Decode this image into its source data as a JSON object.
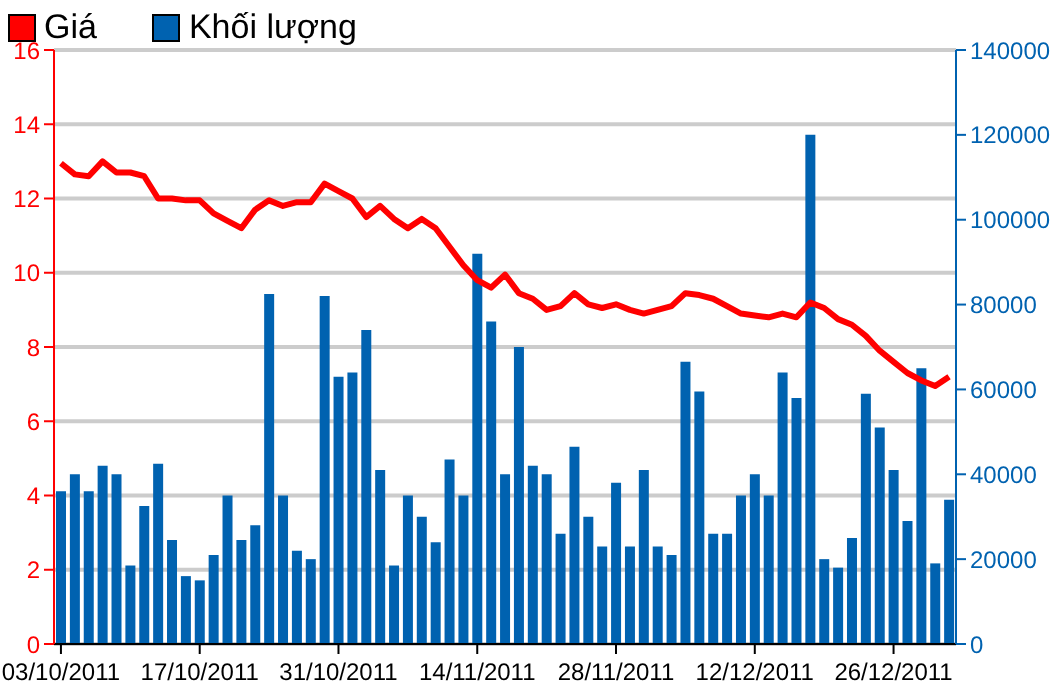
{
  "chart_data": {
    "type": "bar",
    "categories": [
      "03/10/2011",
      null,
      null,
      null,
      null,
      null,
      null,
      null,
      null,
      null,
      "17/10/2011",
      null,
      null,
      null,
      null,
      null,
      null,
      null,
      null,
      null,
      "31/10/2011",
      null,
      null,
      null,
      null,
      null,
      null,
      null,
      null,
      null,
      "14/11/2011",
      null,
      null,
      null,
      null,
      null,
      null,
      null,
      null,
      null,
      "28/11/2011",
      null,
      null,
      null,
      null,
      null,
      null,
      null,
      null,
      null,
      "12/12/2011",
      null,
      null,
      null,
      null,
      null,
      null,
      null,
      null,
      null,
      "26/12/2011",
      null,
      null,
      null,
      null
    ],
    "series": [
      {
        "name": "Giá",
        "type": "line",
        "color": "#ff0000",
        "values": [
          12.95,
          12.65,
          12.6,
          13.0,
          12.7,
          12.7,
          12.6,
          12.0,
          12.0,
          11.95,
          11.95,
          11.6,
          11.4,
          11.2,
          11.7,
          11.95,
          11.8,
          11.9,
          11.9,
          12.4,
          12.2,
          12.0,
          11.5,
          11.8,
          11.45,
          11.2,
          11.45,
          11.2,
          10.7,
          10.2,
          9.8,
          9.6,
          9.95,
          9.45,
          9.3,
          9.0,
          9.1,
          9.45,
          9.15,
          9.05,
          9.15,
          9.0,
          8.9,
          9.0,
          9.1,
          9.45,
          9.4,
          9.3,
          9.1,
          8.9,
          8.85,
          8.8,
          8.9,
          8.8,
          9.2,
          9.05,
          8.75,
          8.6,
          8.3,
          7.9,
          7.6,
          7.3,
          7.1,
          6.95,
          7.2
        ]
      },
      {
        "name": "Khối lượng",
        "axis": "y2",
        "color": "#0062b0",
        "values": [
          36000,
          40000,
          36000,
          42000,
          40000,
          18500,
          32500,
          42500,
          24500,
          16000,
          15000,
          21000,
          35000,
          24500,
          28000,
          82500,
          35000,
          22000,
          20000,
          82000,
          63000,
          64000,
          74000,
          41000,
          18500,
          35000,
          30000,
          24000,
          43500,
          35000,
          92000,
          76000,
          40000,
          70000,
          42000,
          40000,
          26000,
          46500,
          30000,
          23000,
          38000,
          23000,
          41000,
          23000,
          21000,
          66500,
          59500,
          26000,
          26000,
          35000,
          40000,
          35000,
          64000,
          58000,
          120000,
          20000,
          18000,
          25000,
          59000,
          51000,
          41000,
          29000,
          65000,
          19000,
          34000
        ]
      }
    ],
    "ylim": [
      0,
      16
    ],
    "yticks": [
      0,
      2,
      4,
      6,
      8,
      10,
      12,
      14,
      16
    ],
    "y2lim": [
      0,
      140000
    ],
    "y2ticks": [
      0,
      20000,
      40000,
      60000,
      80000,
      100000,
      120000,
      140000
    ],
    "grid": "y",
    "legend": "top left",
    "marker": "none"
  }
}
